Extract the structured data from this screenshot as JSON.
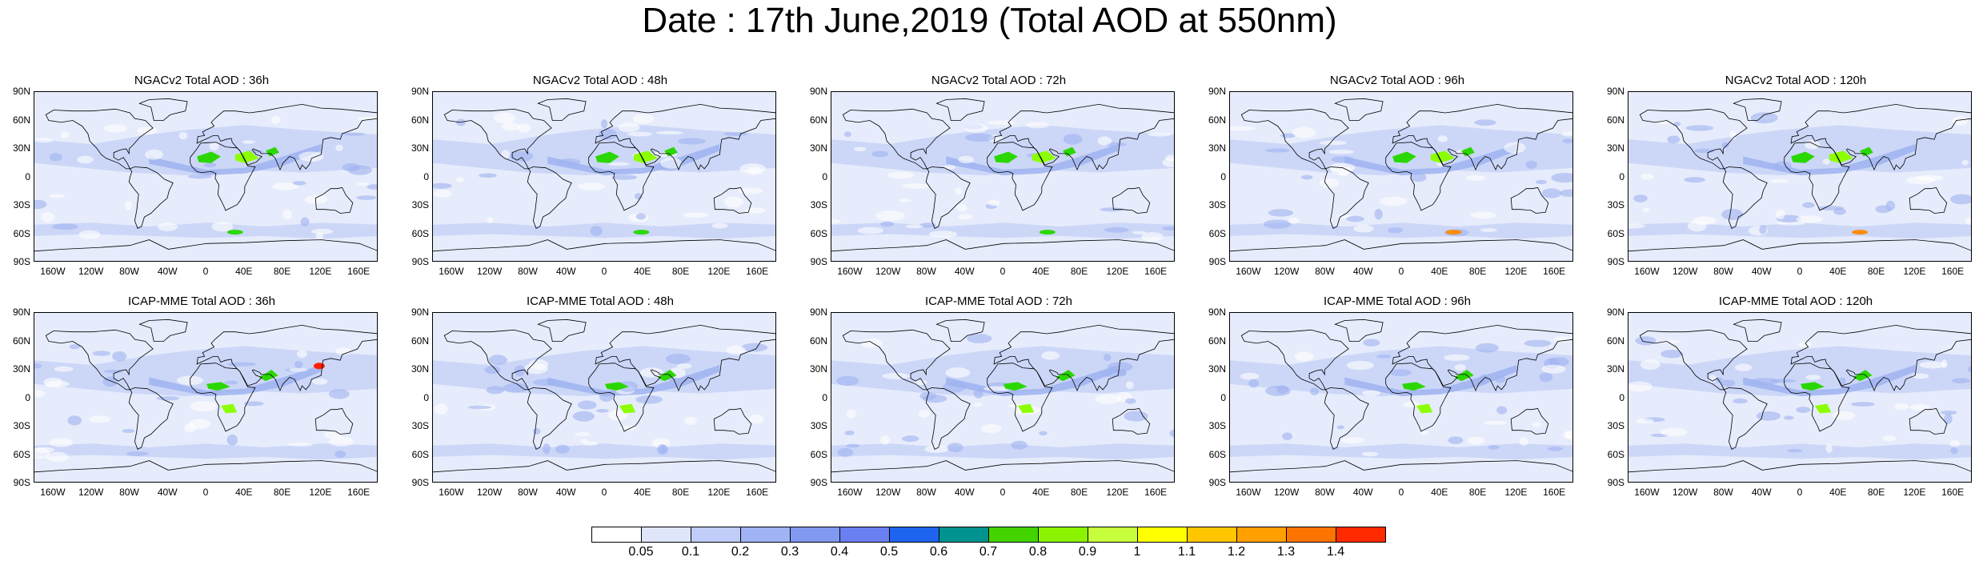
{
  "title": "Date : 17th June,2019 (Total AOD at 550nm)",
  "colors": {
    "ocean_low": "#e6ecfb",
    "ocean_mid": "#c7d4f7",
    "land_band": "#9eb3f0",
    "dust_green": "#2bd700",
    "dust_light_green": "#8cff00",
    "hotspot_orange": "#ff8c00",
    "hotspot_red": "#ff2000",
    "coastline": "#000000"
  },
  "panels": [
    {
      "title": "NGACv2 Total AOD : 36h",
      "row": "NGACv2",
      "lead": "36h"
    },
    {
      "title": "NGACv2 Total AOD : 48h",
      "row": "NGACv2",
      "lead": "48h"
    },
    {
      "title": "NGACv2 Total AOD : 72h",
      "row": "NGACv2",
      "lead": "72h"
    },
    {
      "title": "NGACv2 Total AOD : 96h",
      "row": "NGACv2",
      "lead": "96h"
    },
    {
      "title": "NGACv2 Total AOD : 120h",
      "row": "NGACv2",
      "lead": "120h"
    },
    {
      "title": "ICAP-MME Total AOD : 36h",
      "row": "ICAP-MME",
      "lead": "36h"
    },
    {
      "title": "ICAP-MME Total AOD : 48h",
      "row": "ICAP-MME",
      "lead": "48h"
    },
    {
      "title": "ICAP-MME Total AOD : 72h",
      "row": "ICAP-MME",
      "lead": "72h"
    },
    {
      "title": "ICAP-MME Total AOD : 96h",
      "row": "ICAP-MME",
      "lead": "96h"
    },
    {
      "title": "ICAP-MME Total AOD : 120h",
      "row": "ICAP-MME",
      "lead": "120h"
    }
  ],
  "lat_ticks": [
    "90N",
    "60N",
    "30N",
    "0",
    "30S",
    "60S",
    "90S"
  ],
  "lon_ticks": [
    "160W",
    "120W",
    "80W",
    "40W",
    "0",
    "40E",
    "80E",
    "120E",
    "160E"
  ],
  "colorbar": {
    "labels": [
      "0.05",
      "0.1",
      "0.2",
      "0.3",
      "0.4",
      "0.5",
      "0.6",
      "0.7",
      "0.8",
      "0.9",
      "1",
      "1.1",
      "1.2",
      "1.3",
      "1.4"
    ],
    "colors": [
      "#ffffff",
      "#dfe6fb",
      "#bfcdf8",
      "#a0b4f5",
      "#8299f2",
      "#6a7ff0",
      "#1f64ee",
      "#00938f",
      "#43d400",
      "#8bf200",
      "#c8ff3c",
      "#ffff00",
      "#ffc600",
      "#ff9f00",
      "#ff7400",
      "#ff2a00"
    ]
  }
}
